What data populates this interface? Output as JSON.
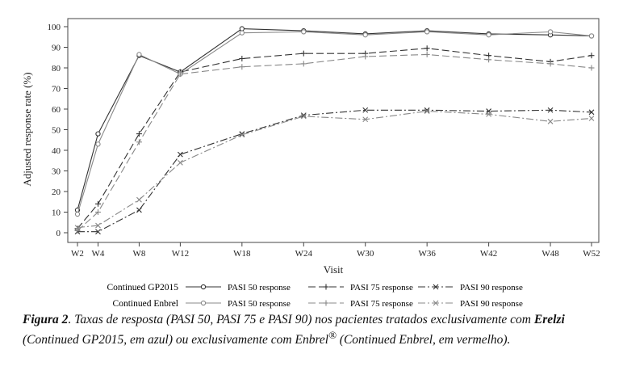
{
  "chart_data": {
    "type": "line",
    "categories": [
      "W2",
      "W4",
      "W8",
      "W12",
      "W18",
      "W24",
      "W30",
      "W36",
      "W42",
      "W48",
      "W52"
    ],
    "x_weeks": [
      2,
      4,
      8,
      12,
      18,
      24,
      30,
      36,
      42,
      48,
      52
    ],
    "xlabel": "Visit",
    "ylabel": "Adjusted response rate (%)",
    "ylim": [
      0,
      100
    ],
    "yticks": [
      0,
      10,
      20,
      30,
      40,
      50,
      60,
      70,
      80,
      90,
      100
    ],
    "grid": false,
    "legend_placement": "bottom",
    "legend_group_labels": [
      "Continued GP2015",
      "Continued Enbrel"
    ],
    "series": [
      {
        "group": "Continued GP2015",
        "name": "PASI 50 response",
        "marker": "circle",
        "dash": "solid",
        "color": "#333333",
        "values": [
          11,
          48,
          86,
          78,
          99,
          98,
          96.5,
          98,
          96.5,
          96,
          95.5
        ]
      },
      {
        "group": "Continued GP2015",
        "name": "PASI 75 response",
        "marker": "plus",
        "dash": "dashed",
        "color": "#333333",
        "values": [
          2,
          14,
          48,
          78,
          84.5,
          87,
          87,
          89.5,
          86,
          83,
          86
        ]
      },
      {
        "group": "Continued GP2015",
        "name": "PASI 90 response",
        "marker": "x",
        "dash": "dashdot",
        "color": "#333333",
        "values": [
          0.5,
          0.5,
          11,
          38,
          48,
          57,
          59.5,
          59.5,
          59,
          59.5,
          58.5
        ]
      },
      {
        "group": "Continued Enbrel",
        "name": "PASI 50 response",
        "marker": "circle",
        "dash": "solid",
        "color": "#888888",
        "values": [
          9,
          43,
          86.5,
          77,
          97,
          97.5,
          96,
          97.5,
          96,
          97.5,
          95.5
        ]
      },
      {
        "group": "Continued Enbrel",
        "name": "PASI 75 response",
        "marker": "plus",
        "dash": "dashed",
        "color": "#888888",
        "values": [
          1,
          10,
          44,
          77,
          80.5,
          82,
          85.5,
          86.5,
          84,
          82,
          80
        ]
      },
      {
        "group": "Continued Enbrel",
        "name": "PASI 90 response",
        "marker": "x",
        "dash": "dashdot",
        "color": "#888888",
        "values": [
          2.5,
          3.5,
          16,
          34,
          47.5,
          56.5,
          55,
          59,
          57.5,
          54,
          55.5
        ]
      }
    ]
  },
  "caption": {
    "fig_label": "Figura 2",
    "text_1": ". Taxas de resposta (PASI 50, PASI 75 e PASI 90) nos pacientes tratados exclusivamente com ",
    "brand": "Erelzi",
    "text_2": " (Continued GP2015, em azul) ou exclusivamente com Enbrel",
    "reg_mark": "®",
    "text_3": " (Continued Enbrel, em vermelho)."
  }
}
